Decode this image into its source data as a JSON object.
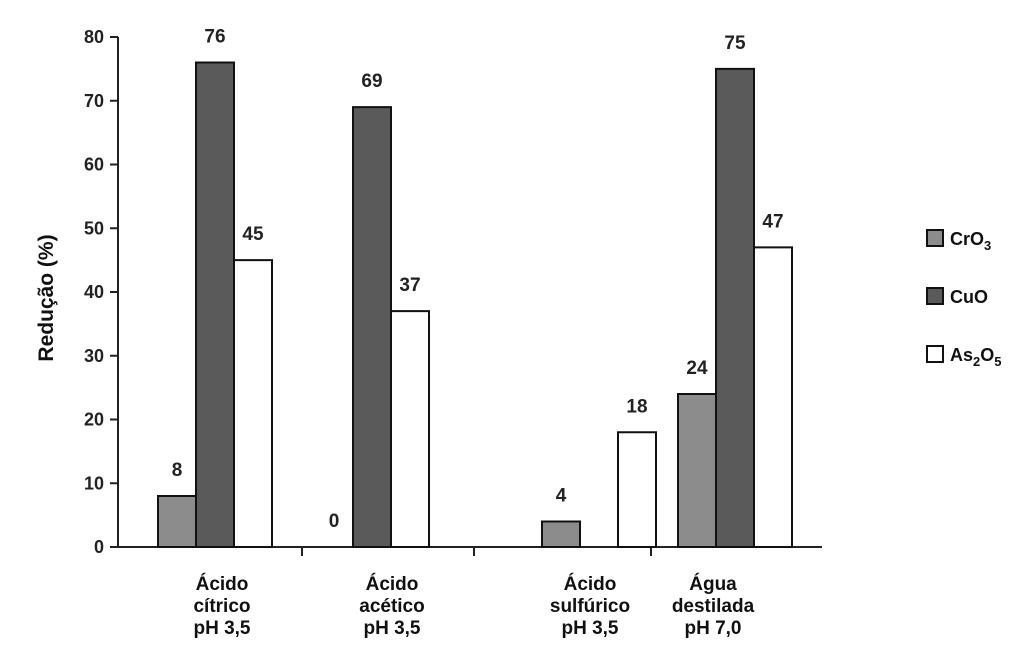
{
  "chart_data": {
    "type": "bar",
    "ylabel": "Redução (%)",
    "ylim": [
      0,
      80
    ],
    "yticks": [
      0,
      10,
      20,
      30,
      40,
      50,
      60,
      70,
      80
    ],
    "grid": false,
    "legend_position": "right",
    "categories": [
      [
        "Ácido",
        "cítrico",
        "pH 3,5"
      ],
      [
        "Ácido",
        "acético",
        "pH 3,5"
      ],
      [
        "Ácido",
        "sulfúrico",
        "pH 3,5"
      ],
      [
        "Água",
        "destilada",
        "pH 7,0"
      ]
    ],
    "series": [
      {
        "name": "CrO3",
        "name_main": "CrO",
        "name_sub": "3",
        "color": "#8c8c8c",
        "values": [
          8,
          0,
          4,
          24
        ],
        "labels": [
          "8",
          "0",
          "4",
          "24"
        ]
      },
      {
        "name": "CuO",
        "name_main": "CuO",
        "name_sub": "",
        "color": "#5a5a5a",
        "values": [
          76,
          69,
          0,
          75
        ],
        "labels": [
          "76",
          "69",
          "",
          "75"
        ]
      },
      {
        "name": "As2O5",
        "name_main": "As",
        "name_sub": "2",
        "name_main2": "O",
        "name_sub2": "5",
        "color": "#ffffff",
        "values": [
          45,
          37,
          18,
          47
        ],
        "labels": [
          "45",
          "37",
          "18",
          "47"
        ]
      }
    ]
  }
}
